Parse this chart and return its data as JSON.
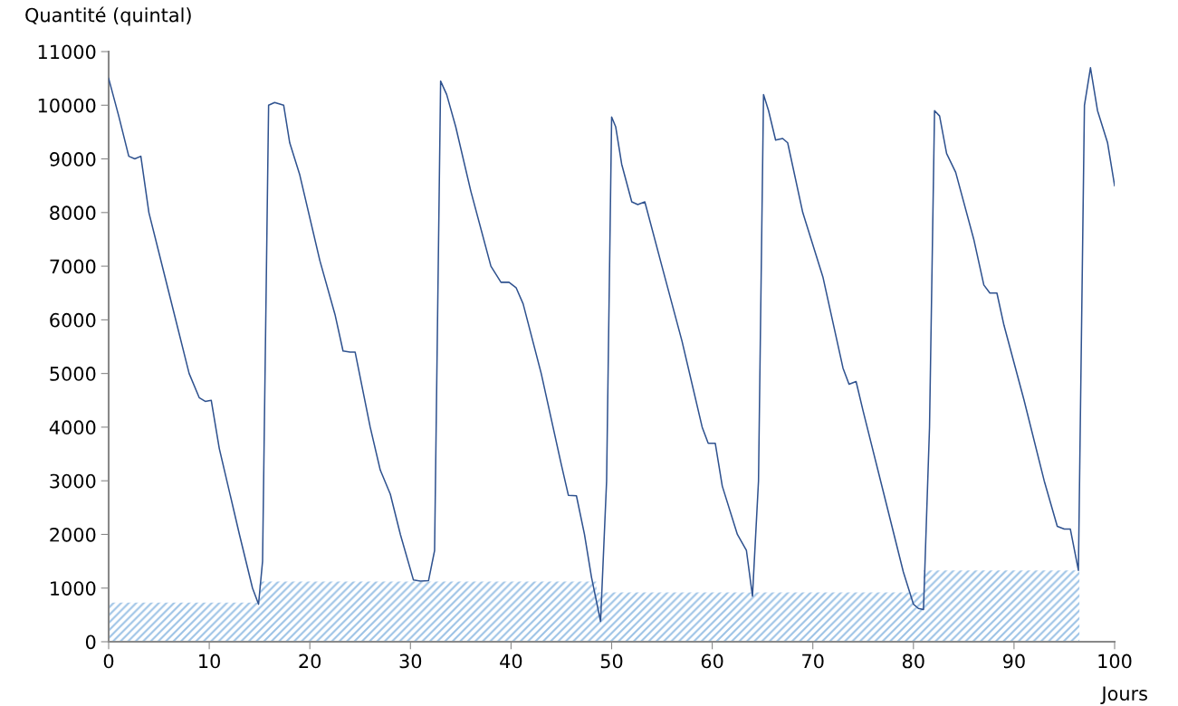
{
  "chart_data": {
    "type": "line",
    "xlabel": "Jours",
    "ylabel": "Quantité (quintal)",
    "xlim": [
      0,
      100
    ],
    "xticks": [
      0,
      10,
      20,
      30,
      40,
      50,
      60,
      70,
      80,
      90,
      100
    ],
    "ylim": [
      0,
      11000
    ],
    "yticks": [
      0,
      1000,
      2000,
      3000,
      4000,
      5000,
      6000,
      7000,
      8000,
      9000,
      10000,
      11000
    ],
    "grid": false,
    "series": [
      {
        "type": "area",
        "color": "#9dc3e6",
        "x": [
          0,
          15,
          15,
          48.5,
          48.5,
          81,
          81,
          96.5,
          96.5
        ],
        "values": [
          730,
          730,
          1120,
          1120,
          920,
          920,
          1330,
          1330,
          0
        ]
      },
      {
        "color": "#2f528f",
        "x": [
          0,
          1,
          2,
          2.6,
          3.2,
          4,
          6,
          8,
          9,
          9.6,
          10.2,
          11,
          13,
          14.3,
          14.9,
          15.3,
          15.9,
          16.5,
          17.4,
          18,
          19,
          21,
          22.5,
          23.3,
          24,
          24.5,
          26,
          27,
          28,
          29,
          30.3,
          31,
          31.8,
          32.4,
          33,
          33.6,
          34.5,
          36,
          38,
          39,
          39.8,
          40.5,
          41.2,
          43,
          45,
          45.7,
          46.5,
          47.3,
          48,
          48.9,
          49.5,
          50,
          50.4,
          51,
          52,
          52.6,
          53.3,
          55,
          57,
          59,
          59.6,
          60.3,
          61,
          62.5,
          63.4,
          64,
          64.6,
          65.1,
          65.6,
          66.3,
          67,
          67.5,
          69,
          71,
          73,
          73.6,
          74.3,
          75,
          77,
          79,
          80,
          80.5,
          81,
          81.6,
          82.1,
          82.6,
          83.3,
          84.2,
          86,
          87,
          87.6,
          88.3,
          89,
          91,
          93,
          94.3,
          95,
          95.6,
          96.4,
          97,
          97.6,
          98.3,
          99.3,
          100
        ],
        "values": [
          10500,
          9800,
          9050,
          9000,
          9050,
          8000,
          6500,
          5000,
          4550,
          4480,
          4500,
          3600,
          2000,
          1000,
          700,
          1500,
          10000,
          10050,
          10000,
          9300,
          8700,
          7100,
          6100,
          5420,
          5400,
          5400,
          4000,
          3200,
          2750,
          2000,
          1150,
          1130,
          1140,
          1700,
          10450,
          10200,
          9600,
          8400,
          7000,
          6700,
          6700,
          6600,
          6300,
          5000,
          3300,
          2730,
          2720,
          2000,
          1200,
          380,
          3000,
          9780,
          9600,
          8900,
          8200,
          8150,
          8200,
          7000,
          5600,
          4000,
          3700,
          3700,
          2900,
          2000,
          1700,
          850,
          3000,
          10200,
          9900,
          9350,
          9380,
          9300,
          8000,
          6800,
          5100,
          4800,
          4850,
          4300,
          2800,
          1300,
          700,
          620,
          600,
          4000,
          9900,
          9800,
          9100,
          8750,
          7500,
          6650,
          6500,
          6500,
          5900,
          4500,
          3000,
          2150,
          2100,
          2100,
          1330,
          10000,
          10700,
          9900,
          9300,
          8500
        ]
      }
    ]
  }
}
